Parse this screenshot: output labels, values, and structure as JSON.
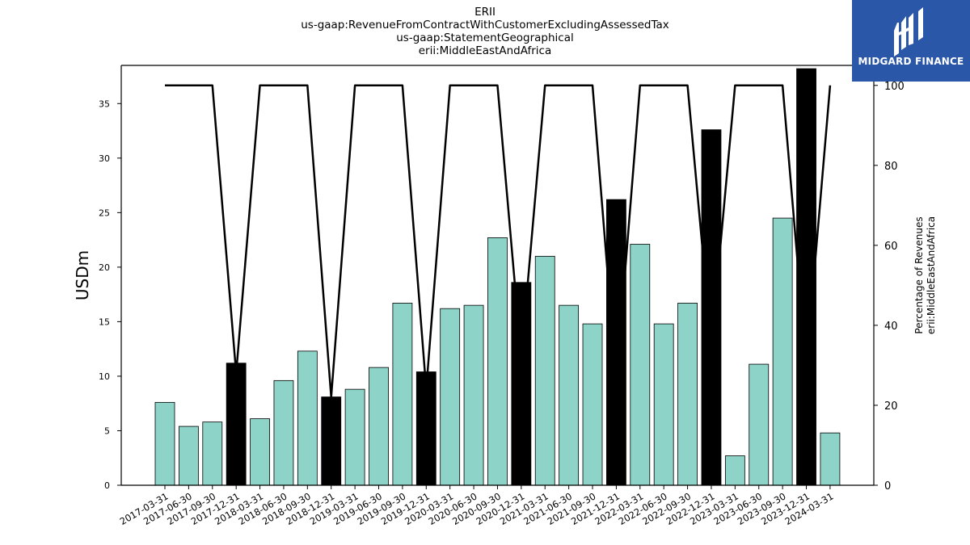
{
  "chart_data": {
    "type": "bar",
    "title_lines": [
      "ERII",
      "us-gaap:RevenueFromContractWithCustomerExcludingAssessedTax",
      "us-gaap:StatementGeographical",
      "erii:MiddleEastAndAfrica"
    ],
    "ylabel": "USDm",
    "y2label_lines": [
      "Percentage of Revenues",
      "erii:MiddleEastAndAfrica"
    ],
    "ylim": [
      0,
      38.5
    ],
    "y2lim": [
      0,
      105
    ],
    "yticks": [
      0,
      5,
      10,
      15,
      20,
      25,
      30,
      35
    ],
    "y2ticks": [
      0,
      20,
      40,
      60,
      80,
      100
    ],
    "grid": false,
    "categories": [
      "2017-03-31",
      "2017-06-30",
      "2017-09-30",
      "2017-12-31",
      "2018-03-31",
      "2018-06-30",
      "2018-09-30",
      "2018-12-31",
      "2019-03-31",
      "2019-06-30",
      "2019-09-30",
      "2019-12-31",
      "2020-03-31",
      "2020-06-30",
      "2020-09-30",
      "2020-12-31",
      "2021-03-31",
      "2021-06-30",
      "2021-09-30",
      "2021-12-31",
      "2022-03-31",
      "2022-06-30",
      "2022-09-30",
      "2022-12-31",
      "2023-03-31",
      "2023-06-30",
      "2023-09-30",
      "2023-12-31",
      "2024-03-31"
    ],
    "values": [
      7.6,
      5.4,
      5.8,
      11.2,
      6.1,
      9.6,
      12.3,
      8.1,
      8.8,
      10.8,
      16.7,
      10.4,
      16.2,
      16.5,
      22.7,
      18.6,
      21.0,
      16.5,
      14.8,
      26.2,
      22.1,
      14.8,
      16.7,
      32.6,
      2.7,
      11.1,
      24.5,
      38.2,
      4.8
    ],
    "bar_kind": [
      "quarter",
      "quarter",
      "quarter",
      "annual",
      "quarter",
      "quarter",
      "quarter",
      "annual",
      "quarter",
      "quarter",
      "quarter",
      "annual",
      "quarter",
      "quarter",
      "quarter",
      "annual",
      "quarter",
      "quarter",
      "quarter",
      "annual",
      "quarter",
      "quarter",
      "quarter",
      "annual",
      "quarter",
      "quarter",
      "quarter",
      "annual",
      "quarter"
    ],
    "percentage_values": [
      100,
      100,
      100,
      28,
      100,
      100,
      100,
      22,
      100,
      100,
      100,
      24,
      100,
      100,
      100,
      32,
      100,
      100,
      100,
      26,
      100,
      100,
      100,
      35,
      100,
      100,
      100,
      30,
      100
    ],
    "colors": {
      "quarter_bar": "#8dd3c7",
      "annual_bar": "#000000",
      "line": "#000000",
      "bar_edge": "#000000"
    }
  },
  "logo": {
    "text": "MIDGARD FINANCE",
    "background": "#2b57a8"
  }
}
